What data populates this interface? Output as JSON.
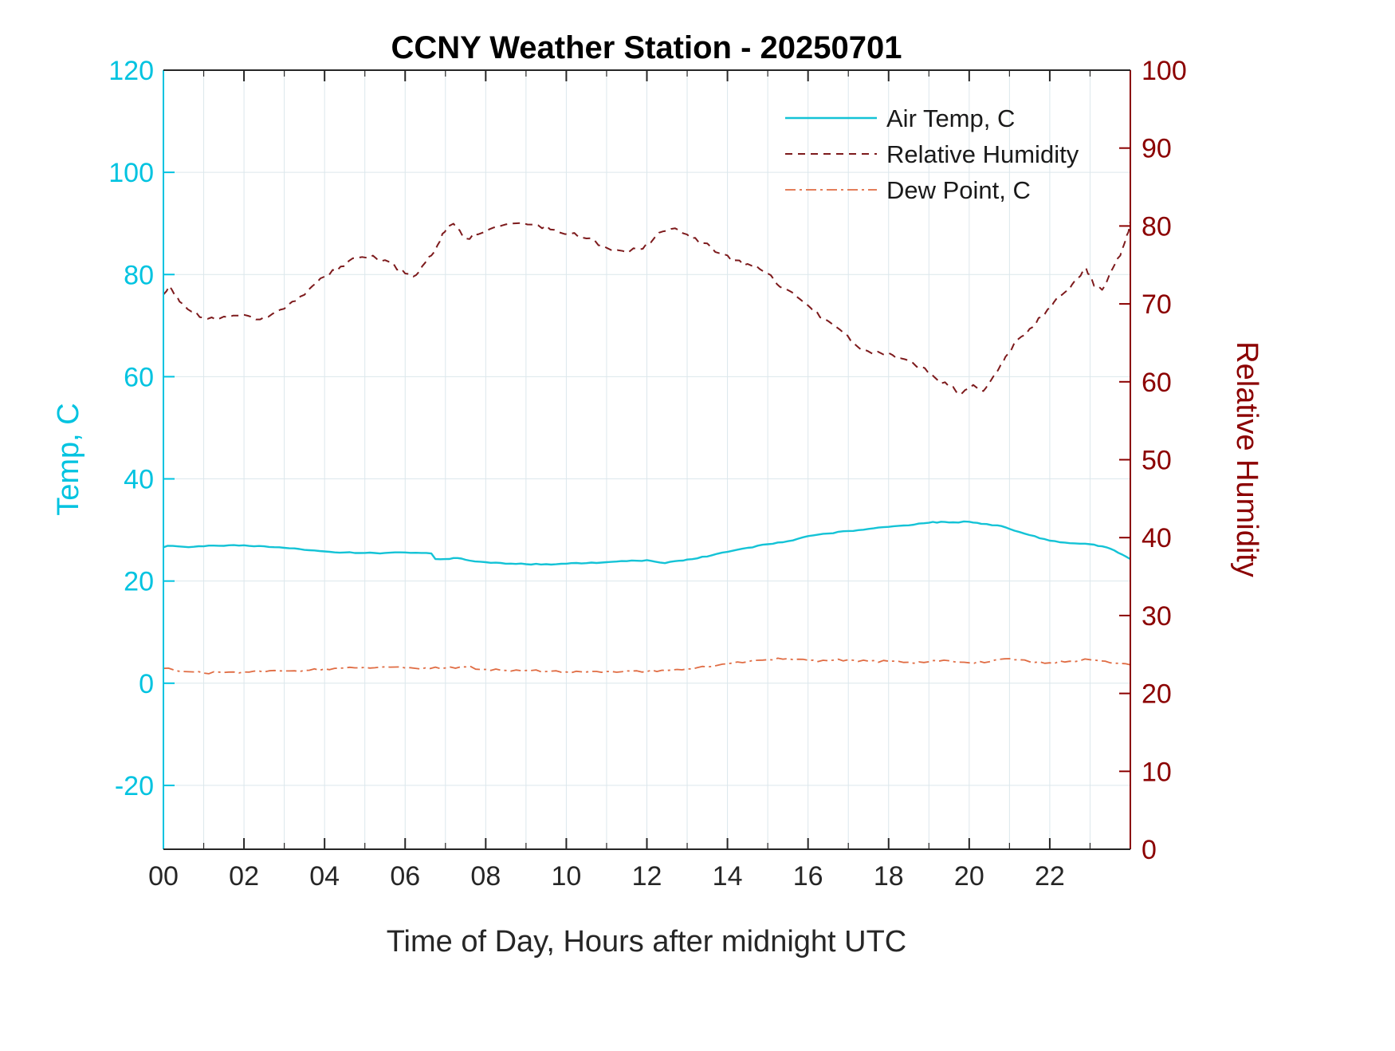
{
  "chart_data": {
    "type": "line",
    "title": "CCNY Weather Station - 20250701",
    "xlabel": "Time of Day, Hours after midnight UTC",
    "x_range": [
      0,
      24
    ],
    "x_minor_step": 1,
    "x_major_ticks": [
      0,
      2,
      4,
      6,
      8,
      10,
      12,
      14,
      16,
      18,
      20,
      22
    ],
    "x_major_labels": [
      "00",
      "02",
      "04",
      "06",
      "08",
      "10",
      "12",
      "14",
      "16",
      "18",
      "20",
      "22"
    ],
    "grid": true,
    "legend_position": "top-right-inside",
    "y_left": {
      "label": "Temp, C",
      "range": [
        -32.5,
        120
      ],
      "ticks": [
        -20,
        0,
        20,
        40,
        60,
        80,
        100,
        120
      ],
      "color": "#00C3E0"
    },
    "y_right": {
      "label": "Relative Humidity",
      "range": [
        0,
        100
      ],
      "ticks": [
        0,
        10,
        20,
        30,
        40,
        50,
        60,
        70,
        80,
        90,
        100
      ],
      "color": "#8B0000"
    },
    "series": [
      {
        "name": "Air Temp, C",
        "axis": "left",
        "style": "solid",
        "color": "#14C3D6",
        "x": [
          0,
          0.1,
          0.5,
          1.0,
          1.5,
          2.0,
          2.5,
          3.0,
          3.5,
          4.0,
          4.5,
          5.0,
          5.5,
          6.0,
          6.4,
          6.65,
          6.75,
          7.0,
          7.3,
          7.6,
          8.0,
          8.5,
          9.0,
          9.5,
          10.0,
          10.5,
          11.0,
          11.5,
          12.0,
          12.2,
          12.45,
          12.7,
          13.0,
          13.5,
          14.0,
          14.5,
          15.0,
          15.5,
          16.0,
          16.5,
          17.0,
          17.5,
          18.0,
          18.5,
          19.0,
          19.3,
          19.6,
          20.0,
          20.3,
          20.7,
          21.0,
          21.5,
          22.0,
          22.5,
          23.0,
          23.3,
          23.6,
          24.0
        ],
        "y": [
          26.6,
          26.9,
          26.7,
          26.8,
          26.9,
          27.0,
          26.8,
          26.5,
          26.1,
          25.8,
          25.6,
          25.5,
          25.5,
          25.6,
          25.5,
          25.4,
          24.3,
          24.3,
          24.5,
          24.0,
          23.7,
          23.4,
          23.3,
          23.3,
          23.4,
          23.5,
          23.7,
          23.9,
          24.1,
          23.8,
          23.5,
          23.9,
          24.2,
          24.8,
          25.7,
          26.5,
          27.2,
          27.8,
          28.8,
          29.3,
          29.8,
          30.2,
          30.6,
          30.9,
          31.4,
          31.6,
          31.5,
          31.6,
          31.2,
          30.9,
          30.2,
          29.0,
          27.9,
          27.4,
          27.2,
          26.8,
          26.0,
          24.3
        ]
      },
      {
        "name": "Relative Humidity",
        "axis": "right",
        "style": "dashed",
        "color": "#7D1A1C",
        "x": [
          0,
          0.15,
          0.4,
          0.7,
          1.0,
          1.3,
          1.6,
          2.0,
          2.4,
          2.8,
          3.2,
          3.6,
          4.0,
          4.4,
          4.8,
          5.2,
          5.6,
          6.0,
          6.2,
          6.5,
          6.8,
          7.05,
          7.2,
          7.5,
          7.8,
          8.1,
          8.5,
          8.9,
          9.3,
          9.7,
          10.1,
          10.5,
          11.0,
          11.4,
          11.8,
          12.1,
          12.4,
          12.7,
          13.0,
          13.4,
          13.8,
          14.2,
          14.6,
          15.0,
          15.3,
          15.7,
          16.1,
          16.5,
          16.9,
          17.3,
          17.6,
          18.0,
          18.4,
          18.8,
          19.2,
          19.5,
          19.8,
          20.1,
          20.35,
          20.6,
          20.9,
          21.2,
          21.5,
          21.8,
          22.1,
          22.4,
          22.7,
          22.9,
          23.1,
          23.3,
          23.5,
          23.75,
          23.95,
          24.0
        ],
        "y": [
          71.2,
          72.3,
          70.3,
          69.0,
          68.2,
          68.0,
          68.3,
          68.6,
          68.0,
          69.0,
          70.3,
          71.8,
          73.5,
          74.8,
          75.9,
          76.2,
          75.4,
          73.9,
          73.5,
          75.3,
          77.5,
          79.9,
          80.3,
          78.4,
          78.9,
          79.6,
          80.2,
          80.4,
          80.1,
          79.5,
          79.0,
          78.4,
          77.2,
          76.8,
          77.0,
          77.9,
          79.3,
          79.7,
          78.9,
          77.8,
          76.5,
          75.6,
          74.9,
          73.9,
          72.2,
          71.0,
          69.3,
          67.8,
          66.2,
          64.2,
          63.6,
          63.7,
          62.9,
          62.0,
          60.3,
          59.4,
          58.4,
          59.6,
          58.8,
          60.7,
          63.2,
          65.4,
          66.8,
          68.3,
          70.2,
          71.6,
          73.3,
          74.6,
          72.3,
          71.8,
          74.0,
          76.2,
          79.2,
          80.6
        ]
      },
      {
        "name": "Dew Point, C",
        "axis": "left",
        "style": "dashdot",
        "color": "#E06C43",
        "x": [
          0,
          0.5,
          1.0,
          1.5,
          2.0,
          2.5,
          3.0,
          3.5,
          4.0,
          4.5,
          5.0,
          5.5,
          6.0,
          6.5,
          7.0,
          7.5,
          8.0,
          8.5,
          9.0,
          9.5,
          10.0,
          10.5,
          11.0,
          11.5,
          12.0,
          12.5,
          13.0,
          13.5,
          14.0,
          14.5,
          15.0,
          15.5,
          16.0,
          16.5,
          17.0,
          17.5,
          18.0,
          18.5,
          19.0,
          19.5,
          20.0,
          20.5,
          21.0,
          21.5,
          22.0,
          22.5,
          23.0,
          23.5,
          24.0
        ],
        "y": [
          2.9,
          2.3,
          2.0,
          2.1,
          2.2,
          2.2,
          2.4,
          2.5,
          2.8,
          3.0,
          3.1,
          3.2,
          3.0,
          3.0,
          3.0,
          3.2,
          2.7,
          2.5,
          2.5,
          2.3,
          2.2,
          2.2,
          2.3,
          2.4,
          2.3,
          2.5,
          2.8,
          3.2,
          3.8,
          4.2,
          4.6,
          4.8,
          4.5,
          4.4,
          4.6,
          4.3,
          4.3,
          4.1,
          4.2,
          4.4,
          4.0,
          4.2,
          4.8,
          4.2,
          4.0,
          4.3,
          4.6,
          4.0,
          3.6
        ]
      }
    ]
  }
}
